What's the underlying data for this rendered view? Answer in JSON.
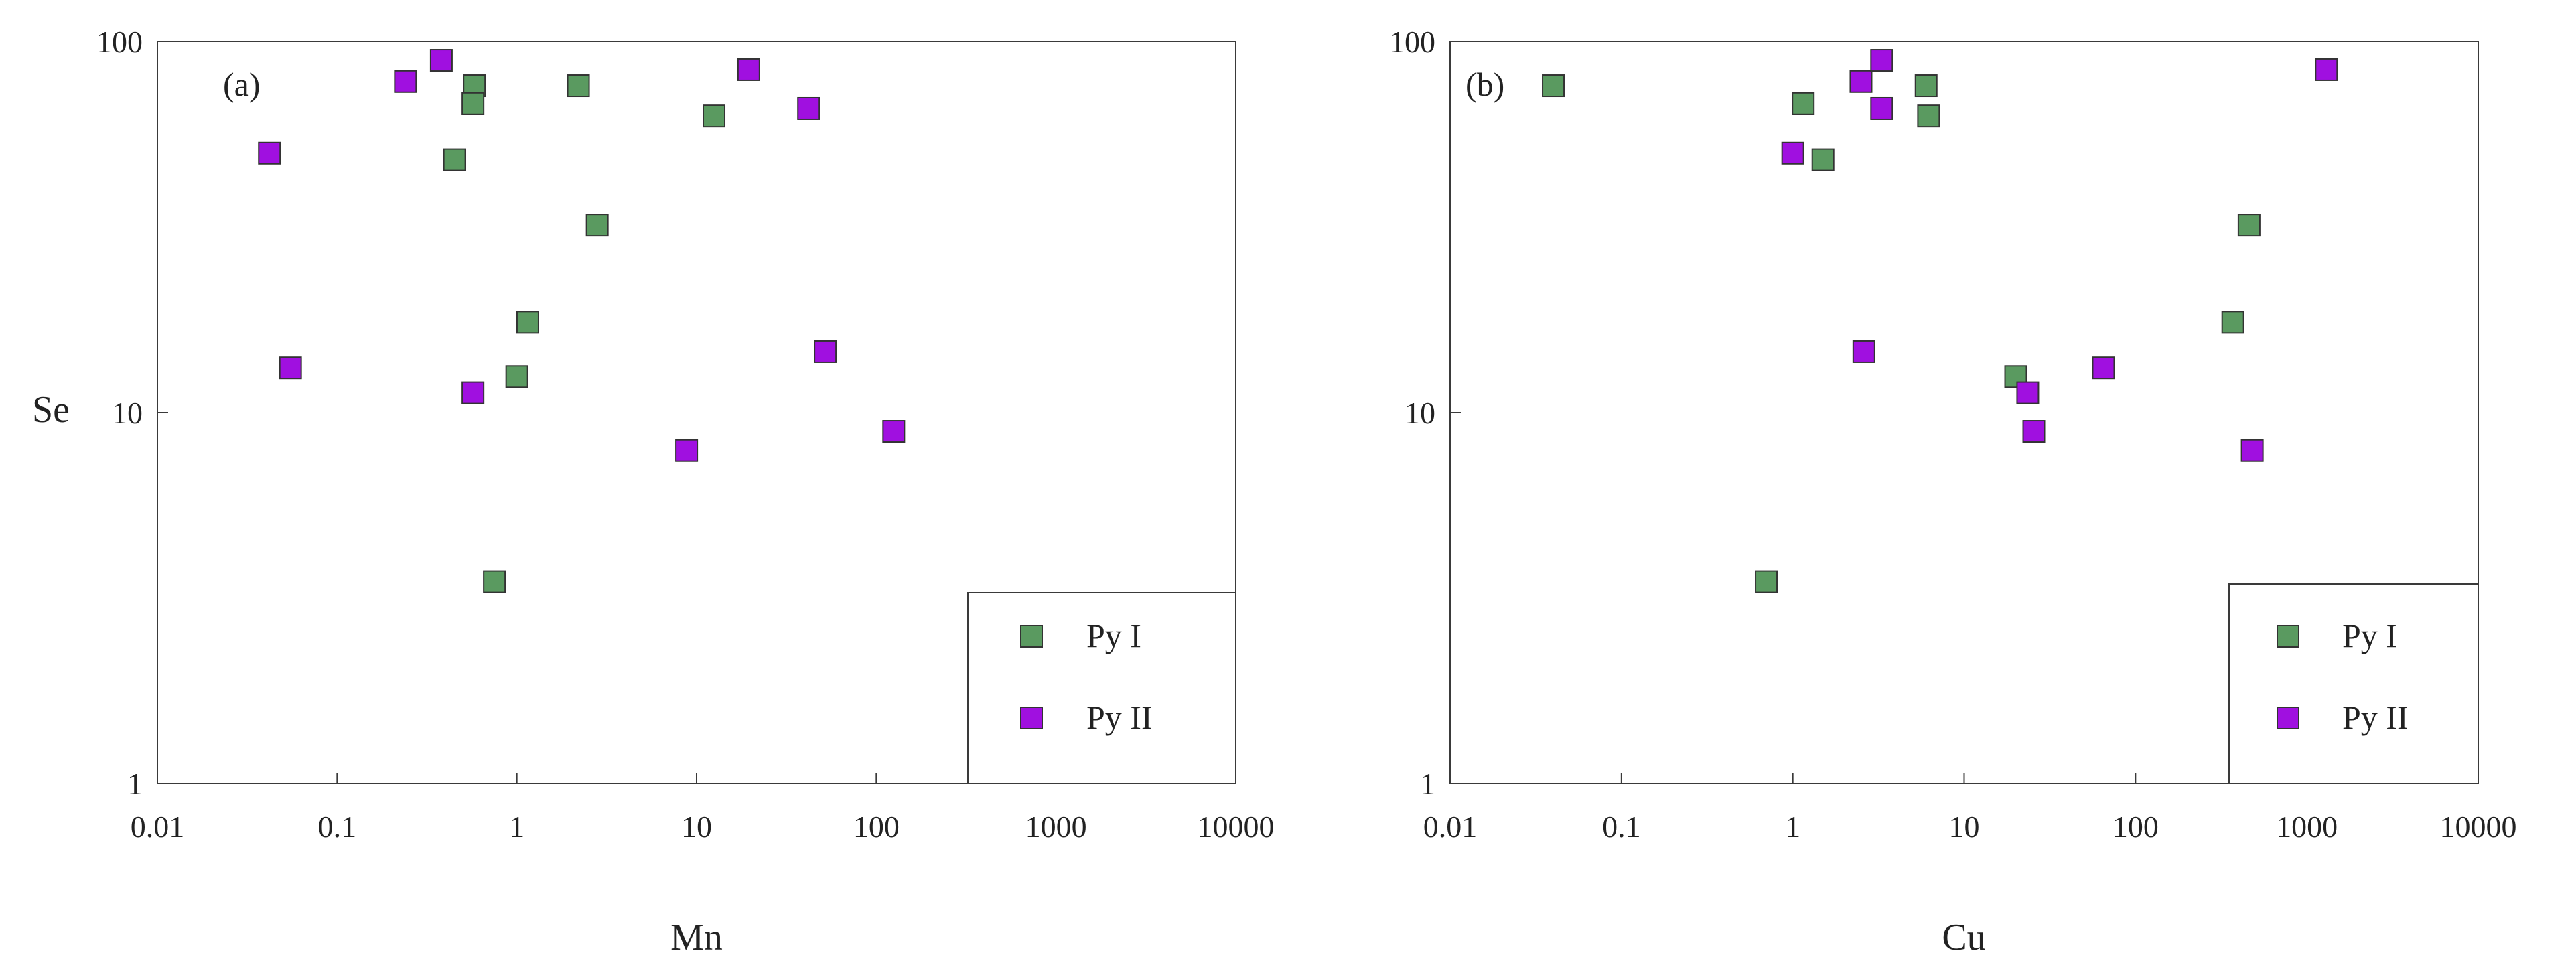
{
  "colors": {
    "py1": "#5a9a60",
    "py2": "#a010e0",
    "frame": "#3a3a3a",
    "marker_edge": "#333333"
  },
  "chart_data": [
    {
      "type": "scatter",
      "panel_label": "(a)",
      "xlabel": "Mn",
      "ylabel": "Se",
      "xscale": "log",
      "yscale": "log",
      "xlim": [
        0.01,
        10000
      ],
      "ylim": [
        1,
        100
      ],
      "xticks": [
        0.01,
        0.1,
        1,
        10,
        100,
        1000,
        10000
      ],
      "xtick_labels": [
        "0.01",
        "0.1",
        "1",
        "10",
        "100",
        "1000",
        "10000"
      ],
      "yticks": [
        1,
        10,
        100
      ],
      "ytick_labels": [
        "1",
        "10",
        "100"
      ],
      "grid": false,
      "legend_position": "bottom-right",
      "series": [
        {
          "name": "Py I",
          "color": "#5a9a60",
          "marker": "square",
          "points": [
            {
              "x": 0.58,
              "y": 76
            },
            {
              "x": 0.57,
              "y": 68
            },
            {
              "x": 0.45,
              "y": 48
            },
            {
              "x": 2.2,
              "y": 76
            },
            {
              "x": 2.8,
              "y": 32
            },
            {
              "x": 1.15,
              "y": 17.5
            },
            {
              "x": 1.0,
              "y": 12.5
            },
            {
              "x": 0.75,
              "y": 3.5
            },
            {
              "x": 12.5,
              "y": 63
            }
          ]
        },
        {
          "name": "Py II",
          "color": "#a010e0",
          "marker": "square",
          "points": [
            {
              "x": 0.042,
              "y": 50
            },
            {
              "x": 0.055,
              "y": 13.2
            },
            {
              "x": 0.24,
              "y": 78
            },
            {
              "x": 0.38,
              "y": 89
            },
            {
              "x": 0.57,
              "y": 11.3
            },
            {
              "x": 8.8,
              "y": 7.9
            },
            {
              "x": 19.5,
              "y": 84
            },
            {
              "x": 42,
              "y": 66
            },
            {
              "x": 52,
              "y": 14.6
            },
            {
              "x": 125,
              "y": 8.9
            }
          ]
        }
      ]
    },
    {
      "type": "scatter",
      "panel_label": "(b)",
      "xlabel": "Cu",
      "ylabel": "",
      "xscale": "log",
      "yscale": "log",
      "xlim": [
        0.01,
        10000
      ],
      "ylim": [
        1,
        100
      ],
      "xticks": [
        0.01,
        0.1,
        1,
        10,
        100,
        1000,
        10000
      ],
      "xtick_labels": [
        "0.01",
        "0.1",
        "1",
        "10",
        "100",
        "1000",
        "10000"
      ],
      "yticks": [
        1,
        10,
        100
      ],
      "ytick_labels": [
        "1",
        "10",
        "100"
      ],
      "grid": false,
      "legend_position": "bottom-right",
      "series": [
        {
          "name": "Py I",
          "color": "#5a9a60",
          "marker": "square",
          "points": [
            {
              "x": 0.04,
              "y": 76
            },
            {
              "x": 1.15,
              "y": 68
            },
            {
              "x": 1.5,
              "y": 48
            },
            {
              "x": 6.0,
              "y": 76
            },
            {
              "x": 6.2,
              "y": 63
            },
            {
              "x": 460,
              "y": 32
            },
            {
              "x": 370,
              "y": 17.5
            },
            {
              "x": 20,
              "y": 12.5
            },
            {
              "x": 0.7,
              "y": 3.5
            }
          ]
        },
        {
          "name": "Py II",
          "color": "#a010e0",
          "marker": "square",
          "points": [
            {
              "x": 1.0,
              "y": 50
            },
            {
              "x": 2.5,
              "y": 78
            },
            {
              "x": 3.3,
              "y": 89
            },
            {
              "x": 3.3,
              "y": 66
            },
            {
              "x": 2.6,
              "y": 14.6
            },
            {
              "x": 23.5,
              "y": 11.3
            },
            {
              "x": 25.5,
              "y": 8.9
            },
            {
              "x": 65,
              "y": 13.2
            },
            {
              "x": 480,
              "y": 7.9
            },
            {
              "x": 1300,
              "y": 84
            }
          ]
        }
      ]
    }
  ]
}
